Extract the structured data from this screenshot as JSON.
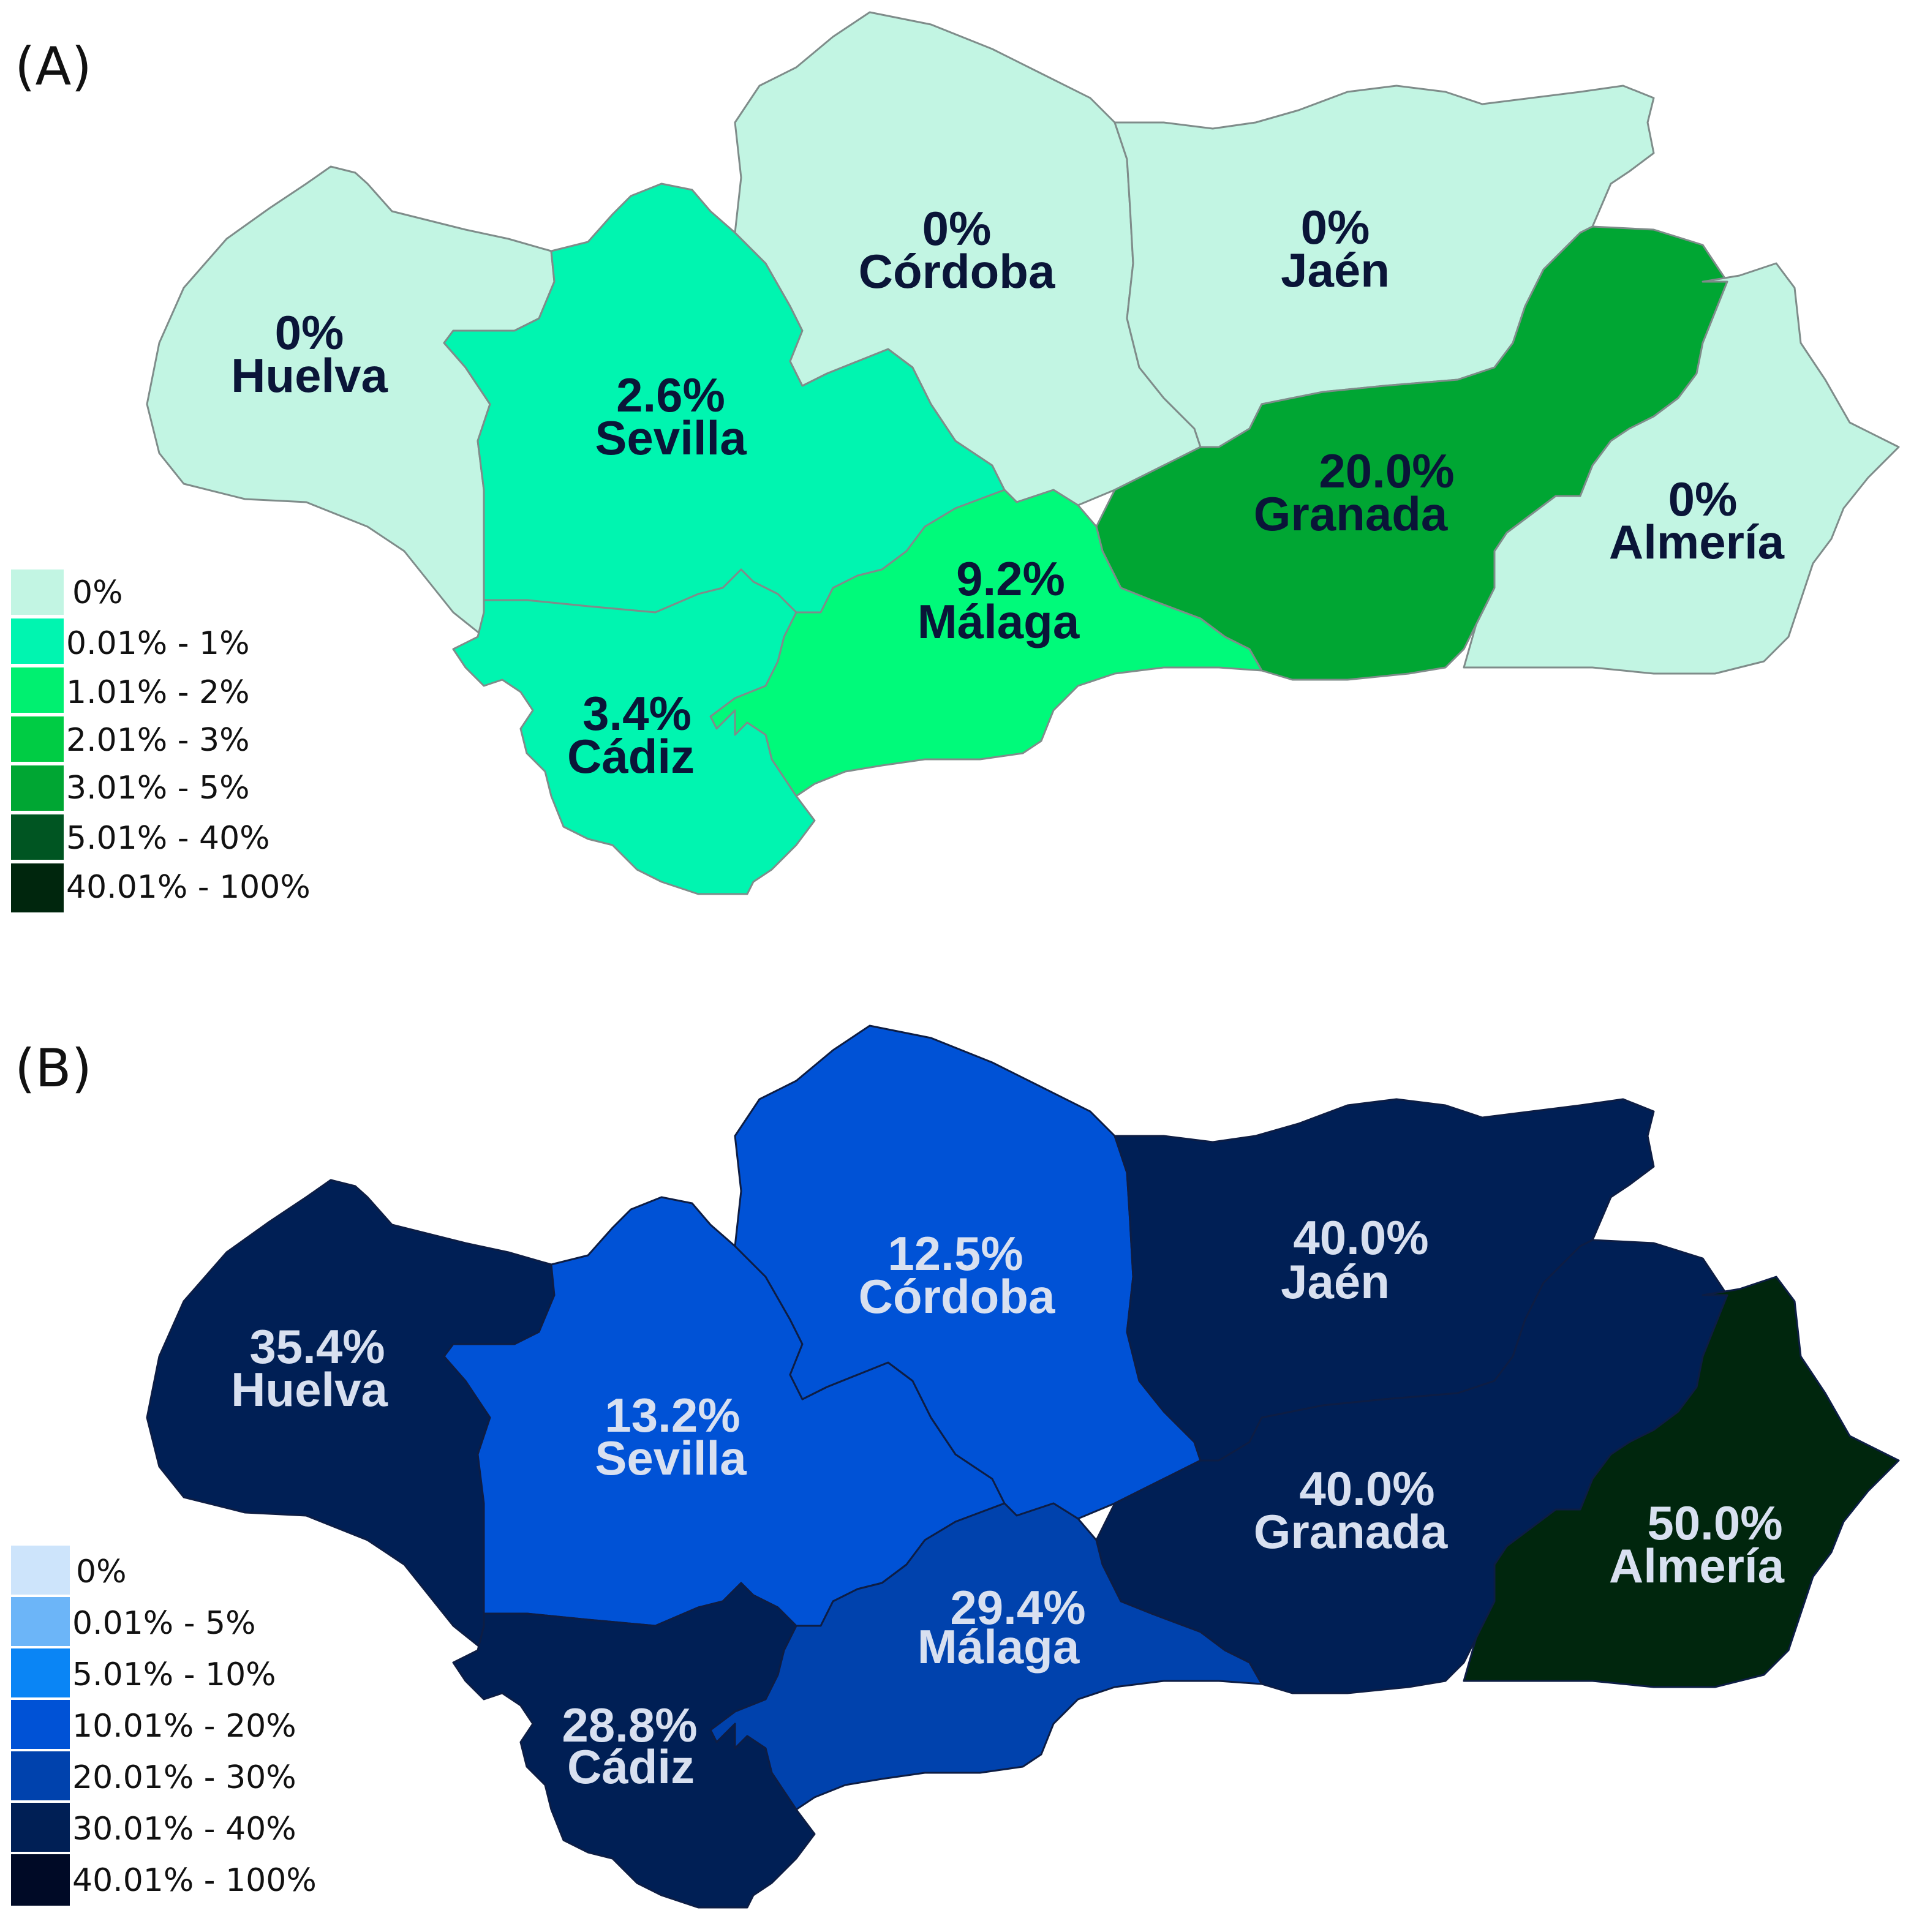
{
  "panels": [
    {
      "label": "(A)",
      "regions": {
        "huelva": {
          "name": "Huelva",
          "value": "0%",
          "color": "#c2f5e3"
        },
        "sevilla": {
          "name": "Sevilla",
          "value": "2.6%",
          "color": "#00f5b0"
        },
        "cordoba": {
          "name": "Córdoba",
          "value": "0%",
          "color": "#c2f5e3"
        },
        "jaen": {
          "name": "Jaén",
          "value": "0%",
          "color": "#c2f5e3"
        },
        "granada": {
          "name": "Granada",
          "value": "20.0%",
          "color": "#00a633"
        },
        "almeria": {
          "name": "Almería",
          "value": "0%",
          "color": "#c2f5e3"
        },
        "malaga": {
          "name": "Málaga",
          "value": "9.2%",
          "color": "#00fa7a"
        },
        "cadiz": {
          "name": "Cádiz",
          "value": "3.4%",
          "color": "#00f5b0"
        }
      },
      "legend": [
        {
          "label": "0%",
          "color": "#c2f5e3"
        },
        {
          "label": "0.01% - 1%",
          "color": "#00f5b0"
        },
        {
          "label": "1.01% - 2%",
          "color": "#00f070"
        },
        {
          "label": "2.01% - 3%",
          "color": "#00cc44"
        },
        {
          "label": "3.01% - 5%",
          "color": "#00a633"
        },
        {
          "label": "5.01% - 40%",
          "color": "#005522"
        },
        {
          "label": "40.01% - 100%",
          "color": "#00260d"
        }
      ]
    },
    {
      "label": "(B)",
      "regions": {
        "huelva": {
          "name": "Huelva",
          "value": "35.4%",
          "color": "#001f55"
        },
        "sevilla": {
          "name": "Sevilla",
          "value": "13.2%",
          "color": "#0052d6"
        },
        "cordoba": {
          "name": "Córdoba",
          "value": "12.5%",
          "color": "#0052d6"
        },
        "jaen": {
          "name": "Jaén",
          "value": "40.0%",
          "color": "#001f55"
        },
        "granada": {
          "name": "Granada",
          "value": "40.0%",
          "color": "#001f55"
        },
        "almeria": {
          "name": "Almería",
          "value": "50.0%",
          "color": "#00260d"
        },
        "malaga": {
          "name": "Málaga",
          "value": "29.4%",
          "color": "#0042ad"
        },
        "cadiz": {
          "name": "Cádiz",
          "value": "28.8%",
          "color": "#001f55"
        }
      },
      "legend": [
        {
          "label": "0%",
          "color": "#cde4fb"
        },
        {
          "label": "0.01% - 5%",
          "color": "#6cb5f8"
        },
        {
          "label": "5.01% - 10%",
          "color": "#0a85f5"
        },
        {
          "label": "10.01% - 20%",
          "color": "#0052d6"
        },
        {
          "label": "20.01% - 30%",
          "color": "#0042ad"
        },
        {
          "label": "30.01% - 40%",
          "color": "#001f55"
        },
        {
          "label": "40.01% - 100%",
          "color": "#000a26"
        }
      ]
    }
  ]
}
